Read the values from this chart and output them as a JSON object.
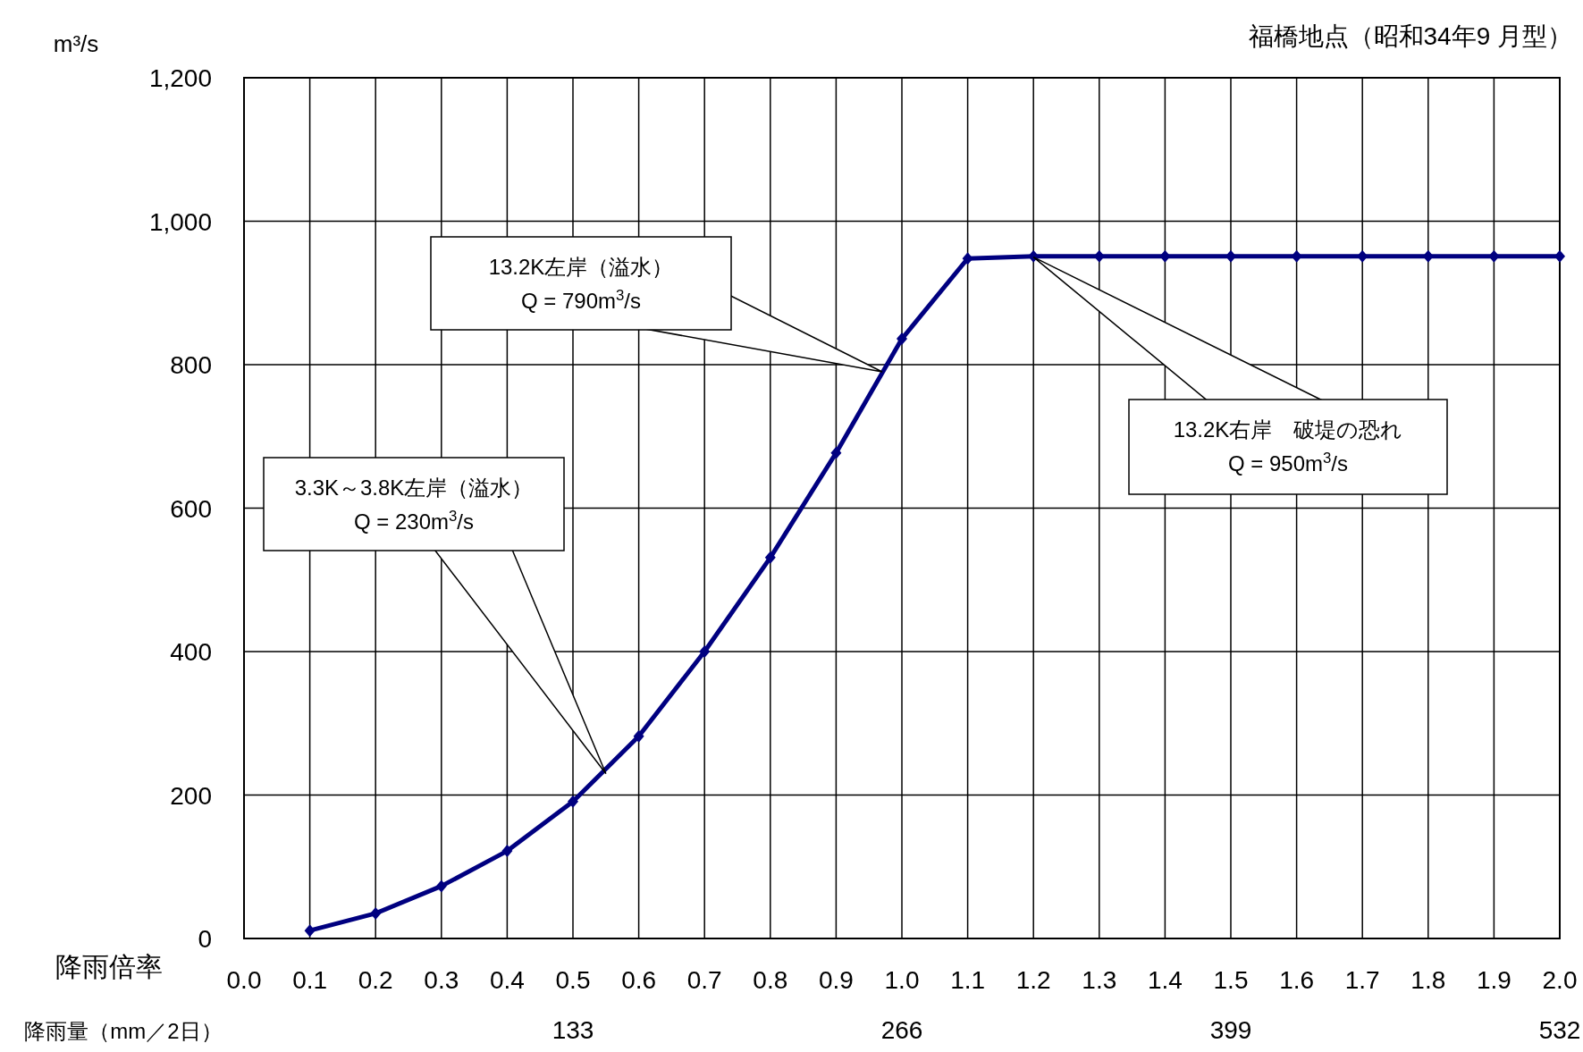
{
  "chart_data": {
    "type": "line",
    "title": "福橋地点（昭和34年9 月型）",
    "ylabel": "m³/s",
    "xlabel": "降雨倍率",
    "x2label": "降雨量（mm／2日）",
    "x": [
      0.1,
      0.2,
      0.3,
      0.4,
      0.5,
      0.6,
      0.7,
      0.8,
      0.9,
      1.0,
      1.1,
      1.2,
      1.3,
      1.4,
      1.5,
      1.6,
      1.7,
      1.8,
      1.9,
      2.0
    ],
    "series": [
      {
        "color": "#000080",
        "values": [
          11,
          35,
          73,
          122,
          191,
          282,
          400,
          531,
          677,
          836,
          948,
          951,
          951,
          951,
          951,
          951,
          951,
          951,
          951,
          951
        ]
      }
    ],
    "marker": "diamond",
    "line_style": "solid",
    "grid": true,
    "xlim": [
      0,
      2
    ],
    "xticks": [
      {
        "value": 0,
        "label": "0.0"
      },
      0.1,
      0.2,
      0.3,
      0.4,
      0.5,
      0.6,
      0.7,
      0.8,
      0.9,
      {
        "value": 1,
        "label": "1.0"
      },
      1.1,
      1.2,
      1.3,
      1.4,
      1.5,
      1.6,
      1.7,
      1.8,
      1.9,
      {
        "value": 2,
        "label": "2.0"
      }
    ],
    "x2lim": [
      0,
      532
    ],
    "x2ticks": [
      133,
      266,
      399,
      532
    ],
    "ylim": [
      0,
      1200
    ],
    "yticks": [
      0,
      200,
      400,
      600,
      800,
      {
        "value": 1000,
        "label": "1,000"
      },
      {
        "value": 1200,
        "label": "1,200"
      }
    ],
    "annotations": [
      {
        "text": "13.2K左岸（溢水）\nQ = 790m$^{3}$/s",
        "x": 0.97,
        "y": 790
      },
      {
        "text": "3.3K～3.8K左岸（溢水）\nQ = 230m$^{3}$/s",
        "x": 0.55,
        "y": 230
      },
      {
        "text": "13.2K右岸　破堤の恐れ\nQ = 950m$^{3}$/s",
        "x": 1.2,
        "y": 950
      }
    ]
  }
}
